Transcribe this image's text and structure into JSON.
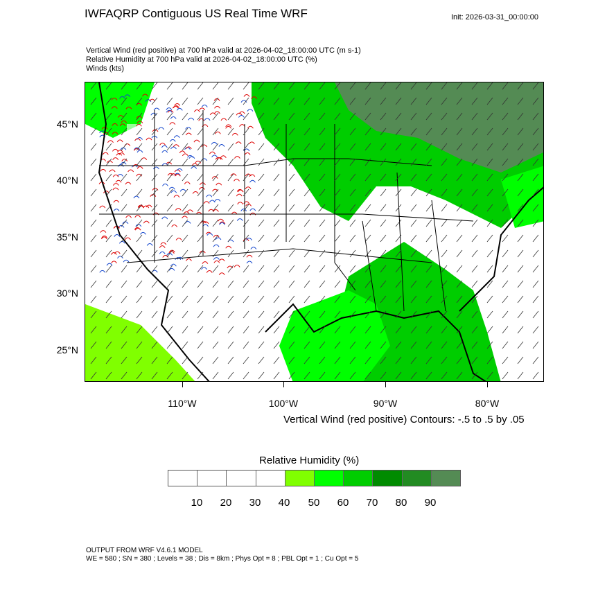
{
  "header": {
    "title": "IWFAQRP Contiguous US Real Time WRF",
    "init": "Init: 2026-03-31_00:00:00",
    "subtitles": [
      "Vertical Wind (red positive) at 700 hPa valid at 2026-04-02_18:00:00 UTC   (m s-1)",
      "Relative Humidity at 700 hPa valid at 2026-04-02_18:00:00 UTC   (%)",
      "Winds   (kts)"
    ]
  },
  "map": {
    "lat_labels": [
      "45°N",
      "40°N",
      "35°N",
      "30°N",
      "25°N"
    ],
    "lon_labels": [
      "110°W",
      "100°W",
      "90°W",
      "80°W"
    ],
    "contour_note": "Vertical Wind (red positive) Contours: -.5 to .5 by .05"
  },
  "colorbar": {
    "title": "Relative Humidity  (%)",
    "labels": [
      "10",
      "20",
      "30",
      "40",
      "50",
      "60",
      "70",
      "80",
      "90"
    ],
    "colors": [
      "#ffffff",
      "#ffffff",
      "#ffffff",
      "#ffffff",
      "#80ff00",
      "#00ff00",
      "#00cd00",
      "#008b00",
      "#228b22",
      "#548b54"
    ]
  },
  "footer": {
    "line1": "OUTPUT FROM WRF V4.6.1 MODEL",
    "line2": "WE = 580 ; SN = 380 ; Levels = 38 ; Dis = 8km ; Phys Opt = 8 ; PBL Opt = 1 ; Cu Opt = 5"
  }
}
